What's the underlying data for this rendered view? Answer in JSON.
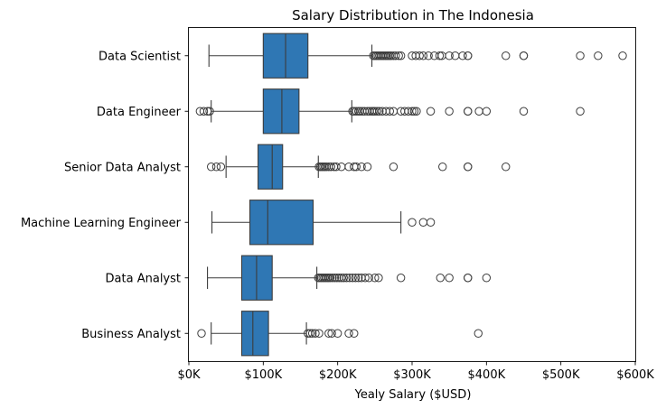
{
  "chart_data": {
    "type": "box",
    "orientation": "horizontal",
    "title": "Salary Distribution in The Indonesia",
    "xlabel": "Yealy Salary ($USD)",
    "ylabel": "",
    "xlim": [
      0,
      600000
    ],
    "xticks": [
      {
        "value": 0,
        "label": "$0K"
      },
      {
        "value": 100000,
        "label": "$100K"
      },
      {
        "value": 200000,
        "label": "$200K"
      },
      {
        "value": 300000,
        "label": "$300K"
      },
      {
        "value": 400000,
        "label": "$400K"
      },
      {
        "value": 500000,
        "label": "$500K"
      },
      {
        "value": 600000,
        "label": "$600K"
      }
    ],
    "grid": false,
    "colors": {
      "box": "#2f77b4",
      "line": "#3c3c3c",
      "axis": "#000000"
    },
    "categories": [
      "Data Scientist",
      "Data Engineer",
      "Senior Data Analyst",
      "Machine Learning Engineer",
      "Data Analyst",
      "Business Analyst"
    ],
    "boxes": [
      {
        "category": "Data Scientist",
        "whisker_low": 27000,
        "q1": 100000,
        "median": 130000,
        "q3": 160000,
        "whisker_high": 246000,
        "outliers": [
          248000,
          250000,
          252000,
          254000,
          256000,
          258000,
          260000,
          262000,
          264000,
          266000,
          268000,
          270000,
          272000,
          275000,
          278000,
          282000,
          285000,
          300000,
          305000,
          310000,
          315000,
          322000,
          330000,
          337000,
          340000,
          350000,
          358000,
          368000,
          375000,
          375000,
          426000,
          450000,
          450000,
          526000,
          550000,
          583000
        ]
      },
      {
        "category": "Data Engineer",
        "whisker_low": 30000,
        "q1": 100000,
        "median": 125000,
        "q3": 148000,
        "whisker_high": 219000,
        "outliers": [
          15000,
          20000,
          25000,
          28000,
          220000,
          222000,
          225000,
          228000,
          230000,
          233000,
          236000,
          240000,
          243000,
          246000,
          248000,
          250000,
          253000,
          256000,
          260000,
          265000,
          270000,
          275000,
          285000,
          290000,
          295000,
          300000,
          303000,
          306000,
          325000,
          350000,
          375000,
          375000,
          390000,
          400000,
          450000,
          526000
        ]
      },
      {
        "category": "Senior Data Analyst",
        "whisker_low": 50000,
        "q1": 93000,
        "median": 112000,
        "q3": 126000,
        "whisker_high": 174000,
        "outliers": [
          30000,
          37000,
          43000,
          175000,
          177000,
          179000,
          181000,
          183000,
          185000,
          188000,
          191000,
          195000,
          198000,
          205000,
          215000,
          222000,
          225000,
          232000,
          240000,
          275000,
          341000,
          375000,
          375000,
          426000
        ]
      },
      {
        "category": "Machine Learning Engineer",
        "whisker_low": 31000,
        "q1": 82000,
        "median": 106000,
        "q3": 167000,
        "whisker_high": 285000,
        "outliers": [
          300000,
          315000,
          325000
        ]
      },
      {
        "category": "Data Analyst",
        "whisker_low": 25000,
        "q1": 71000,
        "median": 91000,
        "q3": 112000,
        "whisker_high": 172000,
        "outliers": [
          174000,
          176000,
          178000,
          180000,
          182000,
          184000,
          186000,
          188000,
          190000,
          193000,
          196000,
          199000,
          202000,
          205000,
          208000,
          212000,
          216000,
          220000,
          224000,
          228000,
          232000,
          237000,
          242000,
          250000,
          255000,
          285000,
          338000,
          350000,
          375000,
          375000,
          400000
        ]
      },
      {
        "category": "Business Analyst",
        "whisker_low": 30000,
        "q1": 71000,
        "median": 86000,
        "q3": 107000,
        "whisker_high": 158000,
        "outliers": [
          17000,
          160000,
          163000,
          166000,
          170000,
          175000,
          188000,
          192000,
          200000,
          215000,
          222000,
          389000
        ]
      }
    ]
  }
}
